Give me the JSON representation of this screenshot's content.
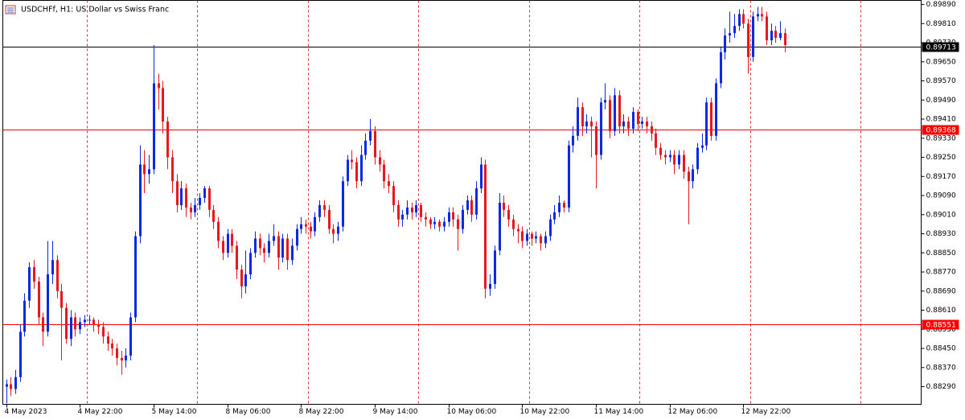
{
  "chart_data": {
    "type": "candlestick",
    "title": "USDCHFf, H1:  US Dollar vs Swiss Franc",
    "up_color": "#0a28e6",
    "down_color": "#e8181c",
    "separator_color": "#e03030",
    "ylim": [
      0.88216,
      0.89907
    ],
    "xlim": [
      -0.7,
      198.6
    ],
    "yticks": [
      {
        "value": 0.8829,
        "label": "0.88290"
      },
      {
        "value": 0.8837,
        "label": "0.88370"
      },
      {
        "value": 0.8845,
        "label": "0.88450"
      },
      {
        "value": 0.8853,
        "label": "0.88530"
      },
      {
        "value": 0.8861,
        "label": "0.88610"
      },
      {
        "value": 0.8869,
        "label": "0.88690"
      },
      {
        "value": 0.8877,
        "label": "0.88770"
      },
      {
        "value": 0.8885,
        "label": "0.88850"
      },
      {
        "value": 0.8893,
        "label": "0.88930"
      },
      {
        "value": 0.8901,
        "label": "0.89010"
      },
      {
        "value": 0.8909,
        "label": "0.89090"
      },
      {
        "value": 0.8917,
        "label": "0.89170"
      },
      {
        "value": 0.8925,
        "label": "0.89250"
      },
      {
        "value": 0.8933,
        "label": "0.89330"
      },
      {
        "value": 0.8941,
        "label": "0.89410"
      },
      {
        "value": 0.8949,
        "label": "0.89490"
      },
      {
        "value": 0.8957,
        "label": "0.89570"
      },
      {
        "value": 0.8965,
        "label": "0.89650"
      },
      {
        "value": 0.8973,
        "label": "0.89730"
      },
      {
        "value": 0.8981,
        "label": "0.89810"
      },
      {
        "value": 0.8989,
        "label": "0.89890"
      }
    ],
    "xticks": [
      {
        "value": 0,
        "label": "4 May 2023"
      },
      {
        "value": 16,
        "label": "4 May 22:00"
      },
      {
        "value": 32,
        "label": "5 May 14:00"
      },
      {
        "value": 48,
        "label": "8 May 06:00"
      },
      {
        "value": 64,
        "label": "8 May 22:00"
      },
      {
        "value": 80,
        "label": "9 May 14:00"
      },
      {
        "value": 96,
        "label": "10 May 06:00"
      },
      {
        "value": 112,
        "label": "10 May 22:00"
      },
      {
        "value": 128,
        "label": "11 May 14:00"
      },
      {
        "value": 144,
        "label": "12 May 06:00"
      },
      {
        "value": 160,
        "label": "12 May 22:00"
      }
    ],
    "xgrid": [
      17.5,
      41.5,
      65.5,
      89.5,
      113.5,
      137.5,
      161.5,
      185.5
    ],
    "hlines": [
      {
        "value": 0.89713,
        "color": "#000000"
      },
      {
        "value": 0.89368,
        "color": "#ff0000"
      },
      {
        "value": 0.88551,
        "color": "#ff0000"
      }
    ],
    "ohlc": [
      [
        0.8829,
        0.8832,
        0.8822,
        0.883
      ],
      [
        0.883,
        0.8833,
        0.8825,
        0.8828
      ],
      [
        0.8828,
        0.8836,
        0.8826,
        0.8833
      ],
      [
        0.8833,
        0.8855,
        0.8831,
        0.8852
      ],
      [
        0.8852,
        0.8868,
        0.885,
        0.8865
      ],
      [
        0.8865,
        0.8881,
        0.8862,
        0.8879
      ],
      [
        0.8879,
        0.8882,
        0.887,
        0.8873
      ],
      [
        0.8873,
        0.8875,
        0.8855,
        0.8858
      ],
      [
        0.8858,
        0.886,
        0.8846,
        0.8852
      ],
      [
        0.8852,
        0.889,
        0.885,
        0.8876
      ],
      [
        0.8876,
        0.889,
        0.8872,
        0.8882
      ],
      [
        0.8882,
        0.8884,
        0.8866,
        0.8869
      ],
      [
        0.8869,
        0.8872,
        0.884,
        0.8862
      ],
      [
        0.8862,
        0.8864,
        0.8847,
        0.8849
      ],
      [
        0.8849,
        0.8861,
        0.8846,
        0.8858
      ],
      [
        0.8858,
        0.886,
        0.885,
        0.8853
      ],
      [
        0.8853,
        0.8858,
        0.8851,
        0.8856
      ],
      [
        0.8856,
        0.8859,
        0.8854,
        0.8857
      ],
      [
        0.8857,
        0.8859,
        0.8855,
        0.8857
      ],
      [
        0.8857,
        0.8858,
        0.8852,
        0.8855
      ],
      [
        0.8855,
        0.8857,
        0.8851,
        0.8854
      ],
      [
        0.8854,
        0.8856,
        0.8847,
        0.885
      ],
      [
        0.885,
        0.8852,
        0.8844,
        0.8847
      ],
      [
        0.8847,
        0.8849,
        0.8842,
        0.8845
      ],
      [
        0.8845,
        0.8847,
        0.8838,
        0.8841
      ],
      [
        0.8841,
        0.8844,
        0.8834,
        0.884
      ],
      [
        0.884,
        0.8845,
        0.8837,
        0.8842
      ],
      [
        0.8842,
        0.886,
        0.884,
        0.8858
      ],
      [
        0.8858,
        0.8894,
        0.8856,
        0.8892
      ],
      [
        0.8892,
        0.893,
        0.8889,
        0.8922
      ],
      [
        0.8922,
        0.8928,
        0.891,
        0.8918
      ],
      [
        0.8918,
        0.8926,
        0.8914,
        0.892
      ],
      [
        0.892,
        0.8972,
        0.8918,
        0.8956
      ],
      [
        0.8956,
        0.896,
        0.8945,
        0.8954
      ],
      [
        0.8954,
        0.8957,
        0.8935,
        0.894
      ],
      [
        0.894,
        0.8942,
        0.892,
        0.8925
      ],
      [
        0.8925,
        0.8928,
        0.891,
        0.8915
      ],
      [
        0.8915,
        0.8918,
        0.8902,
        0.8905
      ],
      [
        0.8905,
        0.8915,
        0.8903,
        0.8912
      ],
      [
        0.8912,
        0.8914,
        0.89,
        0.8904
      ],
      [
        0.8904,
        0.8906,
        0.8899,
        0.8902
      ],
      [
        0.8902,
        0.8908,
        0.89,
        0.8905
      ],
      [
        0.8905,
        0.891,
        0.8903,
        0.8908
      ],
      [
        0.8908,
        0.8913,
        0.8906,
        0.8912
      ],
      [
        0.8912,
        0.8913,
        0.89,
        0.8903
      ],
      [
        0.8903,
        0.8905,
        0.8895,
        0.8898
      ],
      [
        0.8898,
        0.89,
        0.8887,
        0.889
      ],
      [
        0.889,
        0.8892,
        0.8882,
        0.8885
      ],
      [
        0.8885,
        0.8895,
        0.8883,
        0.8893
      ],
      [
        0.8893,
        0.8895,
        0.8885,
        0.8888
      ],
      [
        0.8888,
        0.889,
        0.8874,
        0.8878
      ],
      [
        0.8878,
        0.888,
        0.8866,
        0.8871
      ],
      [
        0.8871,
        0.8886,
        0.8868,
        0.8876
      ],
      [
        0.8876,
        0.8887,
        0.8874,
        0.8885
      ],
      [
        0.8885,
        0.8894,
        0.8883,
        0.8891
      ],
      [
        0.8891,
        0.8893,
        0.8884,
        0.8887
      ],
      [
        0.8887,
        0.8889,
        0.8881,
        0.8885
      ],
      [
        0.8885,
        0.8893,
        0.8883,
        0.889
      ],
      [
        0.889,
        0.8897,
        0.8888,
        0.8892
      ],
      [
        0.8892,
        0.8894,
        0.8878,
        0.8883
      ],
      [
        0.8883,
        0.8893,
        0.8881,
        0.8891
      ],
      [
        0.8891,
        0.8893,
        0.8878,
        0.8882
      ],
      [
        0.8882,
        0.8891,
        0.888,
        0.8888
      ],
      [
        0.8888,
        0.8897,
        0.8886,
        0.8895
      ],
      [
        0.8895,
        0.89,
        0.8893,
        0.8897
      ],
      [
        0.8897,
        0.8899,
        0.8893,
        0.8896
      ],
      [
        0.8896,
        0.8898,
        0.8891,
        0.8894
      ],
      [
        0.8894,
        0.8902,
        0.8892,
        0.89
      ],
      [
        0.89,
        0.8907,
        0.8898,
        0.8905
      ],
      [
        0.8905,
        0.8907,
        0.89,
        0.8903
      ],
      [
        0.8903,
        0.8905,
        0.8893,
        0.8895
      ],
      [
        0.8895,
        0.8897,
        0.8889,
        0.8893
      ],
      [
        0.8893,
        0.8898,
        0.889,
        0.8896
      ],
      [
        0.8896,
        0.8917,
        0.8894,
        0.8915
      ],
      [
        0.8915,
        0.8926,
        0.8913,
        0.8924
      ],
      [
        0.8924,
        0.8928,
        0.892,
        0.8923
      ],
      [
        0.8923,
        0.8925,
        0.8912,
        0.8915
      ],
      [
        0.8915,
        0.893,
        0.8913,
        0.8926
      ],
      [
        0.8926,
        0.8935,
        0.8924,
        0.8932
      ],
      [
        0.8932,
        0.8941,
        0.893,
        0.8936
      ],
      [
        0.8936,
        0.8938,
        0.8922,
        0.8925
      ],
      [
        0.8925,
        0.8928,
        0.8919,
        0.8922
      ],
      [
        0.8922,
        0.8924,
        0.8912,
        0.8915
      ],
      [
        0.8915,
        0.8918,
        0.891,
        0.8913
      ],
      [
        0.8913,
        0.8915,
        0.8902,
        0.8905
      ],
      [
        0.8905,
        0.8907,
        0.8896,
        0.8899
      ],
      [
        0.8899,
        0.8903,
        0.8896,
        0.8901
      ],
      [
        0.8901,
        0.8907,
        0.8899,
        0.8904
      ],
      [
        0.8904,
        0.8906,
        0.8899,
        0.8902
      ],
      [
        0.8902,
        0.8907,
        0.89,
        0.8905
      ],
      [
        0.8905,
        0.8906,
        0.8898,
        0.89
      ],
      [
        0.89,
        0.8902,
        0.8896,
        0.8899
      ],
      [
        0.8899,
        0.89,
        0.8895,
        0.8897
      ],
      [
        0.8897,
        0.89,
        0.8895,
        0.8898
      ],
      [
        0.8898,
        0.8899,
        0.8894,
        0.8896
      ],
      [
        0.8896,
        0.89,
        0.8894,
        0.8898
      ],
      [
        0.8898,
        0.8904,
        0.8896,
        0.8902
      ],
      [
        0.8902,
        0.8904,
        0.8896,
        0.8899
      ],
      [
        0.8899,
        0.8901,
        0.8886,
        0.8895
      ],
      [
        0.8895,
        0.8905,
        0.8893,
        0.8903
      ],
      [
        0.8903,
        0.8909,
        0.8901,
        0.8907
      ],
      [
        0.8907,
        0.8909,
        0.8898,
        0.8901
      ],
      [
        0.8901,
        0.8915,
        0.8899,
        0.8912
      ],
      [
        0.8912,
        0.8925,
        0.891,
        0.8922
      ],
      [
        0.8922,
        0.8924,
        0.8866,
        0.887
      ],
      [
        0.887,
        0.8876,
        0.8867,
        0.8872
      ],
      [
        0.8872,
        0.8888,
        0.887,
        0.8886
      ],
      [
        0.8886,
        0.891,
        0.8884,
        0.8906
      ],
      [
        0.8906,
        0.8909,
        0.89,
        0.8903
      ],
      [
        0.8903,
        0.8905,
        0.8896,
        0.8899
      ],
      [
        0.8899,
        0.8901,
        0.8892,
        0.8895
      ],
      [
        0.8895,
        0.8897,
        0.8889,
        0.8894
      ],
      [
        0.8894,
        0.8896,
        0.8887,
        0.889
      ],
      [
        0.889,
        0.8895,
        0.8888,
        0.8893
      ],
      [
        0.8893,
        0.8894,
        0.8888,
        0.8891
      ],
      [
        0.8891,
        0.8894,
        0.8889,
        0.8892
      ],
      [
        0.8892,
        0.8893,
        0.8886,
        0.8889
      ],
      [
        0.8889,
        0.8894,
        0.8887,
        0.8892
      ],
      [
        0.8892,
        0.8901,
        0.889,
        0.8899
      ],
      [
        0.8899,
        0.8905,
        0.8897,
        0.8902
      ],
      [
        0.8902,
        0.8909,
        0.89,
        0.8906
      ],
      [
        0.8906,
        0.8907,
        0.8902,
        0.8904
      ],
      [
        0.8904,
        0.8932,
        0.8902,
        0.893
      ],
      [
        0.893,
        0.8938,
        0.8927,
        0.8934
      ],
      [
        0.8934,
        0.895,
        0.8932,
        0.8946
      ],
      [
        0.8946,
        0.8948,
        0.8934,
        0.8938
      ],
      [
        0.8938,
        0.8943,
        0.8935,
        0.894
      ],
      [
        0.894,
        0.8942,
        0.8925,
        0.8938
      ],
      [
        0.8938,
        0.894,
        0.8912,
        0.8926
      ],
      [
        0.8926,
        0.895,
        0.8924,
        0.8948
      ],
      [
        0.8948,
        0.8956,
        0.8945,
        0.8949
      ],
      [
        0.8949,
        0.8951,
        0.8933,
        0.8936
      ],
      [
        0.8936,
        0.8954,
        0.8934,
        0.8951
      ],
      [
        0.8951,
        0.8953,
        0.8935,
        0.8938
      ],
      [
        0.8938,
        0.8943,
        0.8935,
        0.894
      ],
      [
        0.894,
        0.8942,
        0.8934,
        0.8937
      ],
      [
        0.8937,
        0.8946,
        0.8935,
        0.8944
      ],
      [
        0.8944,
        0.8945,
        0.8936,
        0.8939
      ],
      [
        0.8939,
        0.8942,
        0.8937,
        0.894
      ],
      [
        0.894,
        0.8942,
        0.8935,
        0.8938
      ],
      [
        0.8938,
        0.894,
        0.8932,
        0.8935
      ],
      [
        0.8935,
        0.8937,
        0.8926,
        0.8929
      ],
      [
        0.8929,
        0.8931,
        0.8924,
        0.8926
      ],
      [
        0.8926,
        0.8928,
        0.8922,
        0.8925
      ],
      [
        0.8925,
        0.8928,
        0.8923,
        0.8926
      ],
      [
        0.8926,
        0.8928,
        0.8918,
        0.8922
      ],
      [
        0.8922,
        0.8928,
        0.892,
        0.8926
      ],
      [
        0.8926,
        0.8928,
        0.8916,
        0.8919
      ],
      [
        0.8919,
        0.8921,
        0.8897,
        0.8915
      ],
      [
        0.8915,
        0.8922,
        0.8912,
        0.892
      ],
      [
        0.892,
        0.8931,
        0.8918,
        0.8929
      ],
      [
        0.8929,
        0.8935,
        0.8927,
        0.893
      ],
      [
        0.893,
        0.895,
        0.8928,
        0.8948
      ],
      [
        0.8948,
        0.895,
        0.8932,
        0.8934
      ],
      [
        0.8934,
        0.8958,
        0.8932,
        0.8956
      ],
      [
        0.8956,
        0.8971,
        0.8954,
        0.8969
      ],
      [
        0.8969,
        0.8979,
        0.8966,
        0.8976
      ],
      [
        0.8976,
        0.8986,
        0.8973,
        0.8977
      ],
      [
        0.8977,
        0.8985,
        0.8975,
        0.898
      ],
      [
        0.898,
        0.8987,
        0.8978,
        0.8985
      ],
      [
        0.8985,
        0.8987,
        0.8979,
        0.8981
      ],
      [
        0.8981,
        0.8983,
        0.896,
        0.8967
      ],
      [
        0.8967,
        0.8986,
        0.8965,
        0.8984
      ],
      [
        0.8984,
        0.8988,
        0.8982,
        0.8985
      ],
      [
        0.8985,
        0.8988,
        0.8982,
        0.8984
      ],
      [
        0.8984,
        0.8986,
        0.8972,
        0.8974
      ],
      [
        0.8974,
        0.8981,
        0.8972,
        0.8978
      ],
      [
        0.8978,
        0.898,
        0.8973,
        0.8975
      ],
      [
        0.8975,
        0.8982,
        0.8974,
        0.8977
      ],
      [
        0.8977,
        0.8979,
        0.8969,
        0.8972
      ]
    ]
  }
}
